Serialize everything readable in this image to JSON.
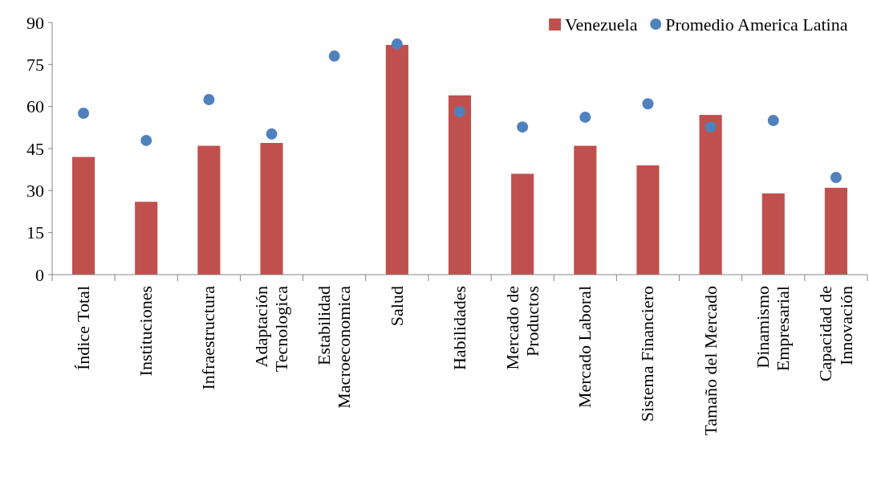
{
  "chart_data": {
    "type": "bar",
    "categories": [
      "Índice Total",
      "Instituciones",
      "Infraestructura",
      "Adaptación Tecnologica",
      "Estabilidad Macroeconomica",
      "Salud",
      "Habilidades",
      "Mercado de Productos",
      "Mercado Laboral",
      "Sistema Financiero",
      "Tamaño del Mercado",
      "Dinamismo Empresarial",
      "Capacidad de Innovación"
    ],
    "series": [
      {
        "name": "Venezuela",
        "color": "#c0504d",
        "values": [
          42,
          26,
          46,
          47,
          null,
          82,
          64,
          36,
          46,
          39,
          57,
          29,
          31
        ]
      },
      {
        "name": "Promedio America Latina",
        "type": "scatter",
        "color": "#4f81bd",
        "values": [
          57.6,
          47.9,
          62.5,
          50.2,
          78,
          82.3,
          58.2,
          52.7,
          56.2,
          61,
          52.7,
          55,
          34.7
        ]
      }
    ],
    "ylim": [
      0,
      90
    ],
    "yticks": [
      0,
      15,
      30,
      45,
      60,
      75,
      90
    ],
    "grid": false,
    "legend": "top right",
    "marker": "circle"
  }
}
